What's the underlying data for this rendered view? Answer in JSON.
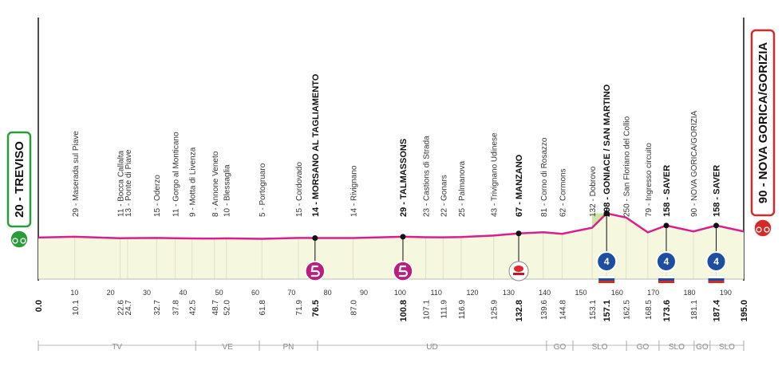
{
  "chart_data": {
    "type": "profile",
    "color": "#d81f8c",
    "fill": "#f5f8de",
    "xlim": [
      0,
      195
    ],
    "ylim": [
      -460,
      2300
    ],
    "xticks": [
      10,
      20,
      30,
      40,
      50,
      60,
      70,
      80,
      90,
      100,
      110,
      120,
      130,
      140,
      150,
      160,
      170,
      180,
      190
    ],
    "waypoints": [
      {
        "km": 0,
        "km_label": "0.0",
        "alt": 20,
        "label": "20 - TREVISO",
        "bold": true
      },
      {
        "km": 10.1,
        "alt": 29,
        "label": "29 - Maserada sul Piave"
      },
      {
        "km": 22.6,
        "alt": 11,
        "label": "11 - Bocca Callalta"
      },
      {
        "km": 24.7,
        "alt": 13,
        "label": "13 - Ponte di Piave"
      },
      {
        "km": 32.7,
        "alt": 15,
        "label": "15 - Oderzo"
      },
      {
        "km": 37.8,
        "alt": 11,
        "label": "11 - Gorgo al Monticano"
      },
      {
        "km": 42.5,
        "alt": 9,
        "label": "9 - Motta di Livenza"
      },
      {
        "km": 48.7,
        "alt": 8,
        "label": "8 - Annone Veneto"
      },
      {
        "km": 52.0,
        "km_label": "52.0",
        "alt": 10,
        "label": "10 - Blessaglia"
      },
      {
        "km": 61.8,
        "alt": 5,
        "label": "5 - Portogruaro"
      },
      {
        "km": 71.9,
        "alt": 15,
        "label": "15 - Cordovado"
      },
      {
        "km": 76.5,
        "alt": 14,
        "label": "14 - MORSANO AL TAGLIAMENTO",
        "bold": true,
        "marker": "sprint"
      },
      {
        "km": 87.0,
        "km_label": "87.0",
        "alt": 14,
        "label": "14 - Rivignano"
      },
      {
        "km": 100.8,
        "alt": 29,
        "label": "29 - TALMASSONS",
        "bold": true,
        "marker": "sprint"
      },
      {
        "km": 107.1,
        "alt": 23,
        "label": "23 - Castions di Strada"
      },
      {
        "km": 111.9,
        "alt": 22,
        "label": "22 - Gonars"
      },
      {
        "km": 116.9,
        "alt": 25,
        "label": "25 - Palmanova"
      },
      {
        "km": 125.9,
        "alt": 43,
        "label": "43 - Trivignano Udinese"
      },
      {
        "km": 132.8,
        "alt": 67,
        "label": "67 - MANZANO",
        "bold": true,
        "marker": "redbull"
      },
      {
        "km": 139.6,
        "alt": 81,
        "label": "81 - Corno di Rosazzo"
      },
      {
        "km": 144.8,
        "alt": 62,
        "label": "62 - Cormons"
      },
      {
        "km": 153.1,
        "alt": 132,
        "label": "132 - Dobrovo"
      },
      {
        "km": 157.1,
        "alt": 298,
        "label": "298 - GONIACE / SAN MARTINO",
        "bold": true,
        "marker": "kom",
        "category": 4
      },
      {
        "km": 162.5,
        "alt": 250,
        "label": "250 - San Floriano del Collio"
      },
      {
        "km": 168.5,
        "alt": 79,
        "label": "79 - Ingresso circuito"
      },
      {
        "km": 173.6,
        "alt": 158,
        "label": "158 - SAVER",
        "bold": true,
        "marker": "kom",
        "category": 4
      },
      {
        "km": 181.1,
        "alt": 90,
        "label": "90 - NOVA GORICA/GORIZIA"
      },
      {
        "km": 187.4,
        "alt": 158,
        "label": "158 - SAVER",
        "bold": true,
        "marker": "kom",
        "category": 4
      },
      {
        "km": 195.0,
        "km_label": "195.0",
        "alt": 90,
        "label": "90 - NOVA GORICA/GORIZIA",
        "bold": true
      }
    ],
    "regions": [
      {
        "label": "TV",
        "to": 43.5
      },
      {
        "label": "VE",
        "to": 61.1
      },
      {
        "label": "PN",
        "to": 77.2
      },
      {
        "label": "UD",
        "to": 140.5
      },
      {
        "label": "GO",
        "to": 147.8
      },
      {
        "label": "SLO",
        "to": 162.6
      },
      {
        "label": "GO",
        "to": 171.6
      },
      {
        "label": "SLO",
        "to": 181.3
      },
      {
        "label": "GO",
        "to": 185.7
      },
      {
        "label": "SLO",
        "to": 195
      }
    ]
  }
}
